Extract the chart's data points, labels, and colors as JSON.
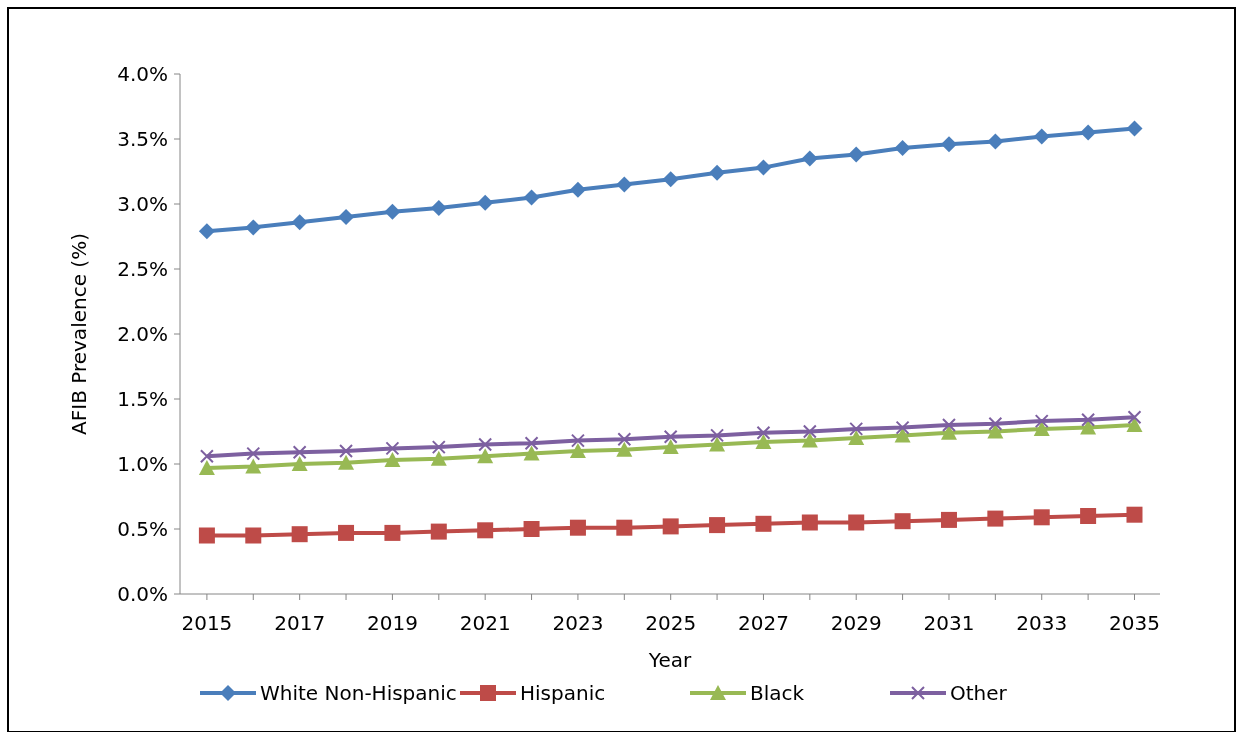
{
  "chart_data": {
    "type": "line",
    "xlabel": "Year",
    "ylabel": "AFIB Prevalence (%)",
    "x": [
      2015,
      2016,
      2017,
      2018,
      2019,
      2020,
      2021,
      2022,
      2023,
      2024,
      2025,
      2026,
      2027,
      2028,
      2029,
      2030,
      2031,
      2032,
      2033,
      2034,
      2035
    ],
    "series": [
      {
        "name": "White Non-Hispanic",
        "color": "#4a7ebb",
        "marker": "diamond",
        "values": [
          2.79,
          2.82,
          2.86,
          2.9,
          2.94,
          2.97,
          3.01,
          3.05,
          3.11,
          3.15,
          3.19,
          3.24,
          3.28,
          3.35,
          3.38,
          3.43,
          3.46,
          3.48,
          3.52,
          3.55,
          3.58
        ]
      },
      {
        "name": "Hispanic",
        "color": "#be4b48",
        "marker": "square",
        "values": [
          0.45,
          0.45,
          0.46,
          0.47,
          0.47,
          0.48,
          0.49,
          0.5,
          0.51,
          0.51,
          0.52,
          0.53,
          0.54,
          0.55,
          0.55,
          0.56,
          0.57,
          0.58,
          0.59,
          0.6,
          0.61
        ]
      },
      {
        "name": "Black",
        "color": "#98b954",
        "marker": "triangle",
        "values": [
          0.97,
          0.98,
          1.0,
          1.01,
          1.03,
          1.04,
          1.06,
          1.08,
          1.1,
          1.11,
          1.13,
          1.15,
          1.17,
          1.18,
          1.2,
          1.22,
          1.24,
          1.25,
          1.27,
          1.28,
          1.3
        ]
      },
      {
        "name": "Other",
        "color": "#7d60a0",
        "marker": "cross",
        "values": [
          1.06,
          1.08,
          1.09,
          1.1,
          1.12,
          1.13,
          1.15,
          1.16,
          1.18,
          1.19,
          1.21,
          1.22,
          1.24,
          1.25,
          1.27,
          1.28,
          1.3,
          1.31,
          1.33,
          1.34,
          1.36
        ]
      }
    ],
    "xlim": [
      2014.42,
      2035.55
    ],
    "xticks": [
      2015,
      2017,
      2019,
      2021,
      2023,
      2025,
      2027,
      2029,
      2031,
      2033,
      2035
    ],
    "ylim": [
      0,
      4
    ],
    "yticks": [
      {
        "value": 0,
        "label": "0.0%"
      },
      {
        "value": 0.5,
        "label": "0.5%"
      },
      {
        "value": 1,
        "label": "1.0%"
      },
      {
        "value": 1.5,
        "label": "1.5%"
      },
      {
        "value": 2,
        "label": "2.0%"
      },
      {
        "value": 2.5,
        "label": "2.5%"
      },
      {
        "value": 3,
        "label": "3.0%"
      },
      {
        "value": 3.5,
        "label": "3.5%"
      },
      {
        "value": 4,
        "label": "4.0%"
      }
    ],
    "grid": false,
    "legend": "bottom",
    "line_style": "solid"
  }
}
